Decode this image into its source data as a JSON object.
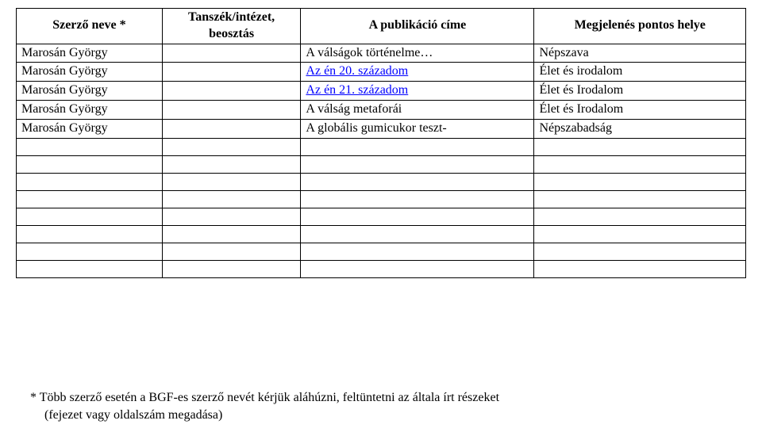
{
  "table": {
    "headers": {
      "author": "Szerző neve *",
      "dept": "Tanszék/intézet, beosztás",
      "title": "A publikáció címe",
      "place": "Megjelenés pontos helye"
    },
    "rows": [
      {
        "author": "Marosán György",
        "dept": "",
        "title": "A válságok történelme…",
        "place": "Népszava",
        "title_link": false
      },
      {
        "author": "Marosán György",
        "dept": "",
        "title": "Az én 20. századom",
        "place": "Élet és irodalom",
        "title_link": true
      },
      {
        "author": "Marosán György",
        "dept": "",
        "title": "Az én 21. századom",
        "place": "Élet és Irodalom",
        "title_link": true
      },
      {
        "author": "Marosán György",
        "dept": "",
        "title": "A válság metaforái",
        "place": "Élet és Irodalom",
        "title_link": false
      },
      {
        "author": "Marosán György",
        "dept": "",
        "title": "A globális gumicukor teszt-",
        "place": "Népszabadság",
        "title_link": false
      },
      {
        "author": "",
        "dept": "",
        "title": "",
        "place": "",
        "title_link": false
      },
      {
        "author": "",
        "dept": "",
        "title": "",
        "place": "",
        "title_link": false
      },
      {
        "author": "",
        "dept": "",
        "title": "",
        "place": "",
        "title_link": false
      },
      {
        "author": "",
        "dept": "",
        "title": "",
        "place": "",
        "title_link": false
      },
      {
        "author": "",
        "dept": "",
        "title": "",
        "place": "",
        "title_link": false
      },
      {
        "author": "",
        "dept": "",
        "title": "",
        "place": "",
        "title_link": false
      },
      {
        "author": "",
        "dept": "",
        "title": "",
        "place": "",
        "title_link": false
      },
      {
        "author": "",
        "dept": "",
        "title": "",
        "place": "",
        "title_link": false
      }
    ]
  },
  "footnote": {
    "line1": "* Több szerző esetén a BGF-es szerző nevét kérjük aláhúzni, feltüntetni az általa írt részeket",
    "line2": "(fejezet vagy oldalszám megadása)"
  }
}
